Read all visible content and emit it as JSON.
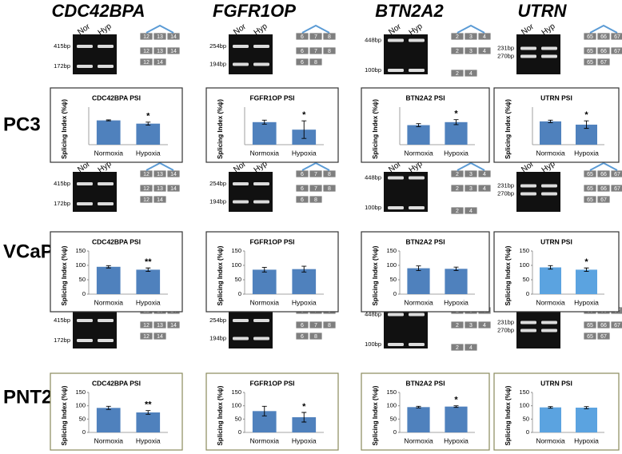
{
  "genes": [
    {
      "name": "CDC42BPA",
      "lanes": [
        "Nor",
        "Hyp"
      ],
      "bp": [
        "415bp",
        "172bp"
      ],
      "isoforms": [
        [
          "12",
          "13",
          "14"
        ],
        [
          "12",
          "13",
          "14"
        ],
        [
          "12",
          "14"
        ]
      ]
    },
    {
      "name": "FGFR1OP",
      "lanes": [
        "Nor",
        "Hyp"
      ],
      "bp": [
        "254bp",
        "194bp"
      ],
      "isoforms": [
        [
          "6",
          "7",
          "8"
        ],
        [
          "6",
          "7",
          "8"
        ],
        [
          "6",
          "8"
        ]
      ]
    },
    {
      "name": "BTN2A2",
      "lanes": [
        "Nor",
        "Hyp"
      ],
      "bp": [
        "448bp",
        "100bp"
      ],
      "isoforms": [
        [
          "2",
          "3",
          "4"
        ],
        [
          "2",
          "3",
          "4"
        ],
        [
          "2",
          "4"
        ]
      ]
    },
    {
      "name": "UTRN",
      "lanes": [
        "Nor",
        "Hyp"
      ],
      "bp": [
        "231bp",
        "270bp"
      ],
      "isoforms": [
        [
          "65",
          "66",
          "67"
        ],
        [
          "65",
          "66",
          "67"
        ],
        [
          "65",
          "67"
        ]
      ]
    }
  ],
  "rows": [
    "PC3",
    "VCaP",
    "PNT2"
  ],
  "chart_data": [
    {
      "type": "bar",
      "title": "CDC42BPA PSI",
      "y_label": "Splicing Index (%ψ)",
      "categories": [
        "Normoxia",
        "Hypoxia"
      ],
      "values": [
        97,
        84
      ],
      "errors": [
        2,
        6
      ],
      "annotation": "*",
      "color": "#4f81bd",
      "ylim": [
        0,
        150
      ]
    },
    {
      "type": "bar",
      "title": "FGFR1OP PSI",
      "y_label": "Splicing Index (%ψ)",
      "categories": [
        "Normoxia",
        "Hypoxia"
      ],
      "values": [
        90,
        60
      ],
      "errors": [
        8,
        35
      ],
      "annotation": "*",
      "color": "#4f81bd",
      "ylim": [
        0,
        150
      ]
    },
    {
      "type": "bar",
      "title": "BTN2A2 PSI",
      "y_label": "Splicing Index (%ψ)",
      "categories": [
        "Normoxia",
        "Hypoxia"
      ],
      "values": [
        78,
        90
      ],
      "errors": [
        6,
        10
      ],
      "annotation": "*",
      "color": "#4f81bd",
      "ylim": [
        0,
        150
      ]
    },
    {
      "type": "bar",
      "title": "UTRN PSI",
      "y_label": "Splicing Index (%ψ)",
      "categories": [
        "Normoxia",
        "Hypoxia"
      ],
      "values": [
        93,
        80
      ],
      "errors": [
        5,
        15
      ],
      "annotation": "*",
      "color": "#4f81bd",
      "ylim": [
        0,
        150
      ]
    },
    {
      "type": "bar",
      "title": "CDC42BPA PSI",
      "y_label": "Splicing Index (%ψ)",
      "categories": [
        "Normoxia",
        "Hypoxia"
      ],
      "values": [
        95,
        85
      ],
      "errors": [
        4,
        6
      ],
      "annotation": "**",
      "color": "#4f81bd",
      "ylim": [
        0,
        150
      ],
      "yticks": [
        0,
        50,
        100,
        150
      ]
    },
    {
      "type": "bar",
      "title": "FGFR1OP PSI",
      "y_label": "Splicing Index (%ψ)",
      "categories": [
        "Normoxia",
        "Hypoxia"
      ],
      "values": [
        85,
        87
      ],
      "errors": [
        8,
        10
      ],
      "color": "#4f81bd",
      "ylim": [
        0,
        150
      ],
      "yticks": [
        0,
        50,
        100,
        150
      ]
    },
    {
      "type": "bar",
      "title": "BTN2A2 PSI",
      "y_label": "Splicing Index (%ψ)",
      "categories": [
        "Normoxia",
        "Hypoxia"
      ],
      "values": [
        90,
        88
      ],
      "errors": [
        8,
        6
      ],
      "color": "#4f81bd",
      "ylim": [
        0,
        150
      ],
      "yticks": [
        0,
        50,
        100,
        150
      ]
    },
    {
      "type": "bar",
      "title": "UTRN PSI",
      "y_label": "Splicing Index (%ψ)",
      "categories": [
        "Normoxia",
        "Hypoxia"
      ],
      "values": [
        93,
        85
      ],
      "errors": [
        6,
        6
      ],
      "annotation": "*",
      "color": "#5ba3e0",
      "ylim": [
        0,
        150
      ],
      "yticks": [
        0,
        50,
        100,
        150
      ]
    },
    {
      "type": "bar",
      "title": "CDC42BPA PSI",
      "y_label": "Splicing Index (%ψ)",
      "categories": [
        "Normoxia",
        "Hypoxia"
      ],
      "values": [
        92,
        75
      ],
      "errors": [
        6,
        7
      ],
      "annotation": "**",
      "color": "#4f81bd",
      "ylim": [
        0,
        150
      ],
      "yticks": [
        0,
        50,
        100,
        150
      ]
    },
    {
      "type": "bar",
      "title": "FGFR1OP PSI",
      "y_label": "Splicing Index (%ψ)",
      "categories": [
        "Normoxia",
        "Hypoxia"
      ],
      "values": [
        80,
        57
      ],
      "errors": [
        18,
        18
      ],
      "annotation": "*",
      "color": "#4f81bd",
      "ylim": [
        0,
        150
      ],
      "yticks": [
        0,
        50,
        100,
        150
      ]
    },
    {
      "type": "bar",
      "title": "BTN2A2 PSI",
      "y_label": "Splicing Index (%ψ)",
      "categories": [
        "Normoxia",
        "Hypoxia"
      ],
      "values": [
        95,
        97
      ],
      "errors": [
        3,
        3
      ],
      "annotation": "*",
      "color": "#4f81bd",
      "ylim": [
        0,
        150
      ],
      "yticks": [
        0,
        50,
        100,
        150
      ]
    },
    {
      "type": "bar",
      "title": "UTRN PSI",
      "y_label": "Splicing Index (%ψ)",
      "categories": [
        "Normoxia",
        "Hypoxia"
      ],
      "values": [
        94,
        93
      ],
      "errors": [
        3,
        4
      ],
      "color": "#5ba3e0",
      "ylim": [
        0,
        150
      ],
      "yticks": [
        0,
        50,
        100,
        150
      ]
    }
  ]
}
